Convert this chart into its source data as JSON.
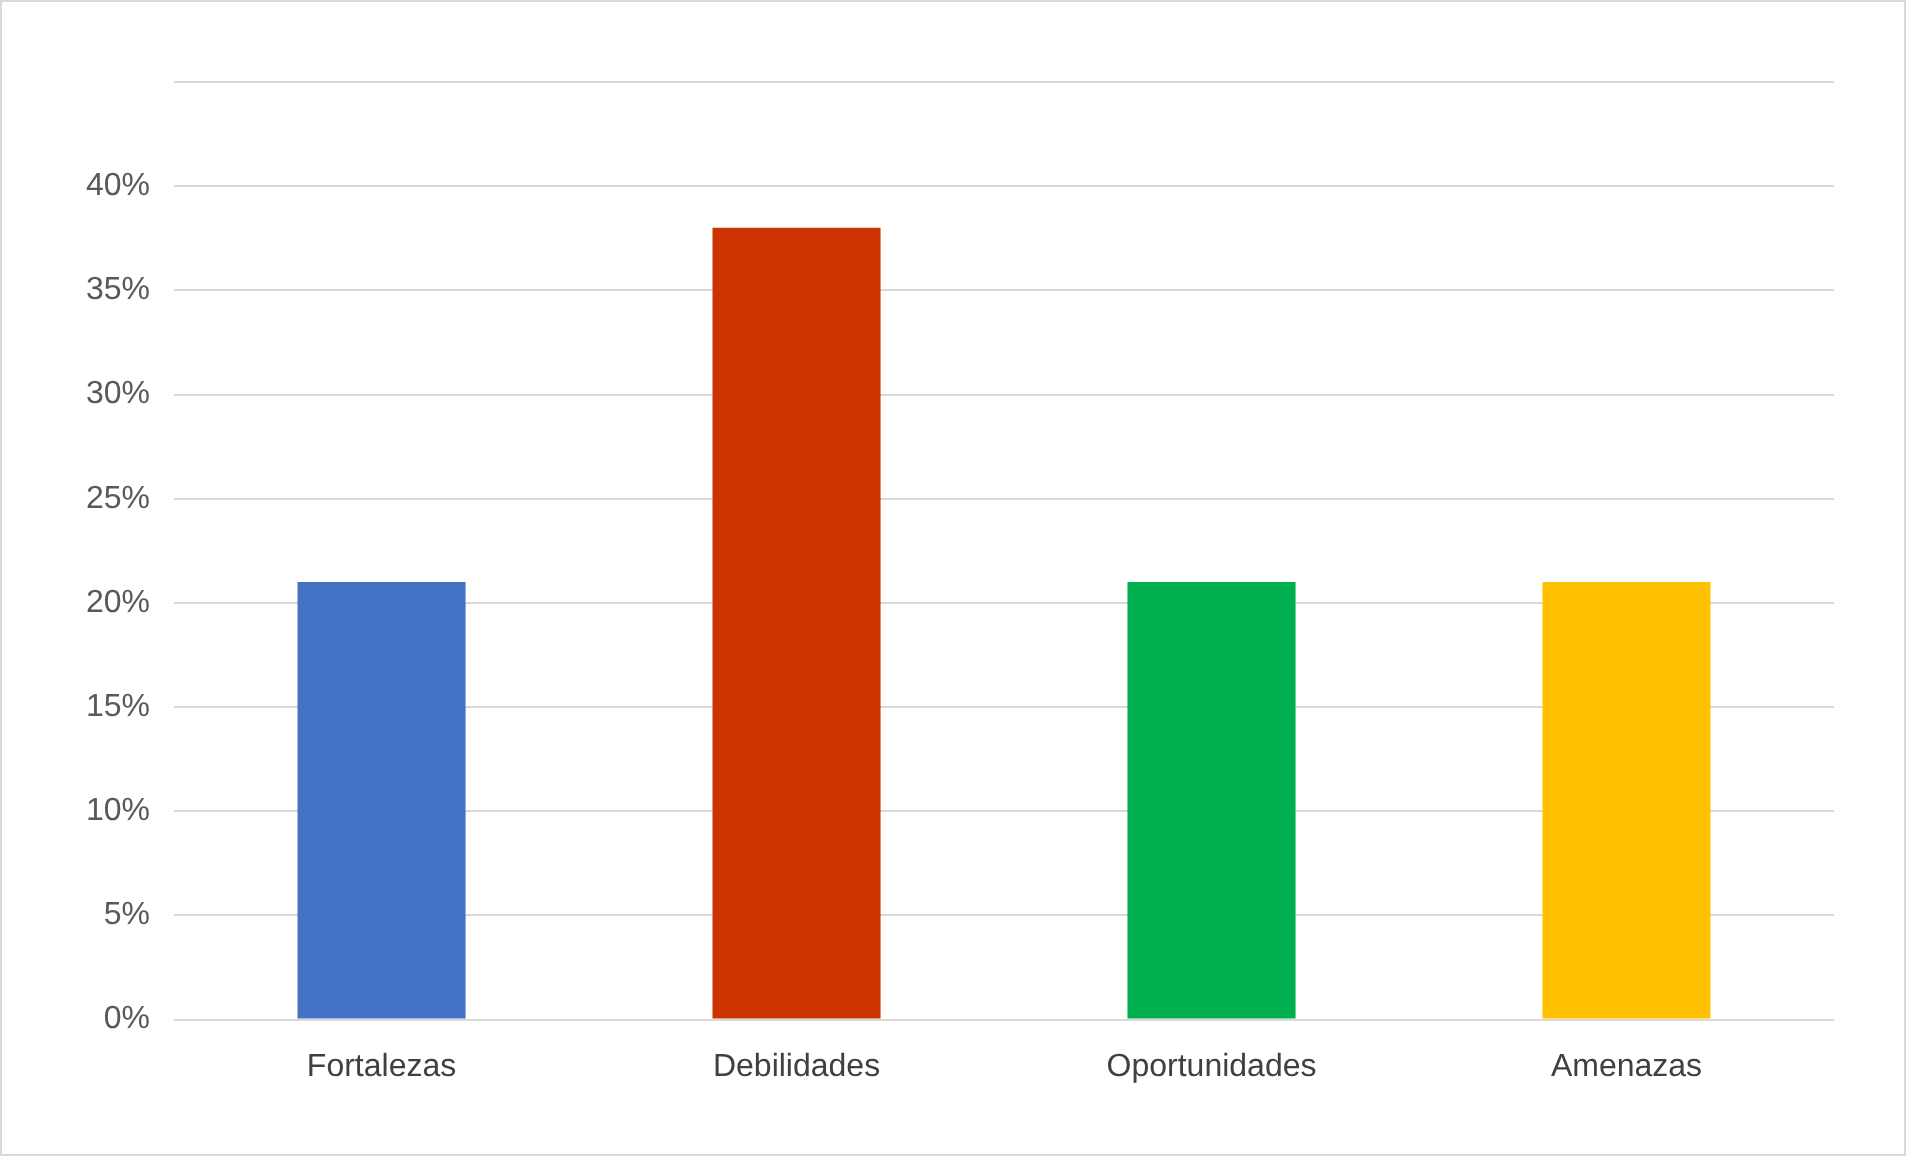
{
  "chart_data": {
    "type": "bar",
    "categories": [
      "Fortalezas",
      "Debilidades",
      "Oportunidades",
      "Amenazas"
    ],
    "values": [
      21,
      38,
      21,
      21
    ],
    "colors": [
      "#4472c4",
      "#cc3300",
      "#00b050",
      "#ffc000"
    ],
    "ylim": [
      0,
      45
    ],
    "yticks": [
      {
        "value": 0,
        "label": "0%"
      },
      {
        "value": 5,
        "label": "5%"
      },
      {
        "value": 10,
        "label": "10%"
      },
      {
        "value": 15,
        "label": "15%"
      },
      {
        "value": 20,
        "label": "20%"
      },
      {
        "value": 25,
        "label": "25%"
      },
      {
        "value": 30,
        "label": "30%"
      },
      {
        "value": 35,
        "label": "35%"
      },
      {
        "value": 40,
        "label": "40%"
      },
      {
        "value": 45,
        "label": null
      }
    ],
    "grid": "y"
  }
}
